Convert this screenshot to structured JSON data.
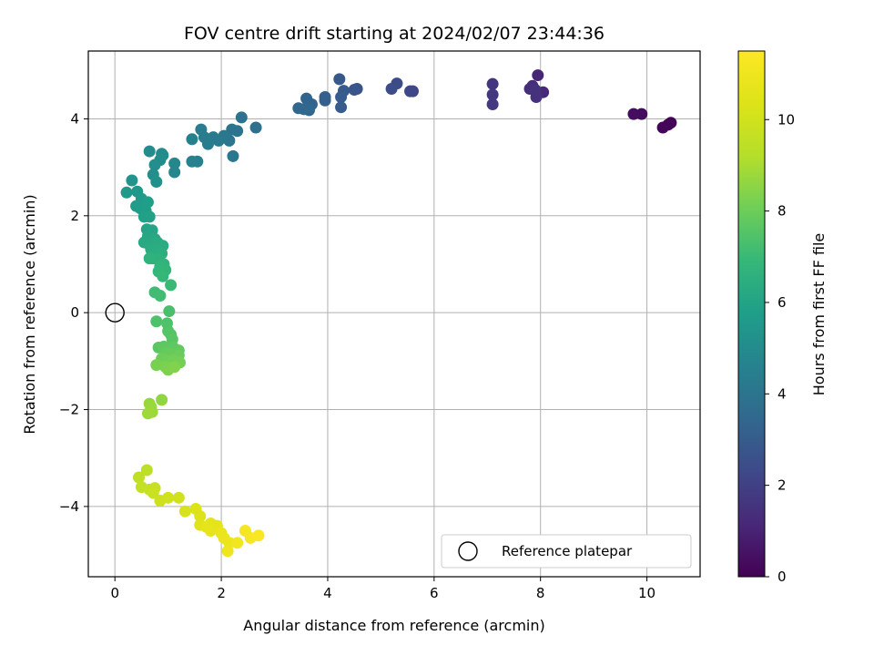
{
  "chart_data": {
    "type": "scatter",
    "title": "FOV centre drift starting at 2024/02/07 23:44:36",
    "xlabel": "Angular distance from reference (arcmin)",
    "ylabel": "Rotation from reference (arcmin)",
    "xlim": [
      -0.5,
      11.0
    ],
    "ylim": [
      -5.45,
      5.4
    ],
    "xticks": [
      0,
      2,
      4,
      6,
      8,
      10
    ],
    "yticks": [
      -4,
      -2,
      0,
      2,
      4
    ],
    "grid": true,
    "legend": {
      "label": "Reference platepar",
      "placement": "lower right",
      "marker": "hollow-circle"
    },
    "reference_point": {
      "x": 0,
      "y": 0
    },
    "colorbar": {
      "label": "Hours from first FF file",
      "colormap": "viridis",
      "range": [
        0,
        11.5
      ],
      "ticks": [
        0,
        2,
        4,
        6,
        8,
        10
      ]
    },
    "points": [
      {
        "x": 10.45,
        "y": 3.92,
        "c": 0.05
      },
      {
        "x": 10.4,
        "y": 3.88,
        "c": 0.1
      },
      {
        "x": 10.3,
        "y": 3.82,
        "c": 0.15
      },
      {
        "x": 9.9,
        "y": 4.1,
        "c": 0.3
      },
      {
        "x": 9.75,
        "y": 4.1,
        "c": 0.35
      },
      {
        "x": 7.95,
        "y": 4.9,
        "c": 1.1
      },
      {
        "x": 8.05,
        "y": 4.55,
        "c": 1.2
      },
      {
        "x": 7.85,
        "y": 4.68,
        "c": 1.3
      },
      {
        "x": 7.8,
        "y": 4.62,
        "c": 1.35
      },
      {
        "x": 7.92,
        "y": 4.45,
        "c": 1.45
      },
      {
        "x": 7.9,
        "y": 4.6,
        "c": 1.5
      },
      {
        "x": 7.1,
        "y": 4.72,
        "c": 1.6
      },
      {
        "x": 7.1,
        "y": 4.5,
        "c": 1.7
      },
      {
        "x": 7.1,
        "y": 4.3,
        "c": 1.75
      },
      {
        "x": 5.6,
        "y": 4.57,
        "c": 2.2
      },
      {
        "x": 5.55,
        "y": 4.57,
        "c": 2.25
      },
      {
        "x": 5.3,
        "y": 4.73,
        "c": 2.4
      },
      {
        "x": 5.2,
        "y": 4.62,
        "c": 2.45
      },
      {
        "x": 4.55,
        "y": 4.62,
        "c": 2.7
      },
      {
        "x": 4.5,
        "y": 4.6,
        "c": 2.75
      },
      {
        "x": 4.22,
        "y": 4.82,
        "c": 2.85
      },
      {
        "x": 4.3,
        "y": 4.58,
        "c": 2.9
      },
      {
        "x": 4.25,
        "y": 4.45,
        "c": 2.95
      },
      {
        "x": 4.25,
        "y": 4.24,
        "c": 3.0
      },
      {
        "x": 3.95,
        "y": 4.38,
        "c": 3.1
      },
      {
        "x": 3.95,
        "y": 4.45,
        "c": 3.15
      },
      {
        "x": 3.7,
        "y": 4.3,
        "c": 3.3
      },
      {
        "x": 3.6,
        "y": 4.42,
        "c": 3.35
      },
      {
        "x": 3.55,
        "y": 4.2,
        "c": 3.4
      },
      {
        "x": 3.45,
        "y": 4.22,
        "c": 3.45
      },
      {
        "x": 3.65,
        "y": 4.18,
        "c": 3.5
      },
      {
        "x": 2.65,
        "y": 3.82,
        "c": 3.8
      },
      {
        "x": 2.38,
        "y": 4.03,
        "c": 3.9
      },
      {
        "x": 2.3,
        "y": 3.75,
        "c": 3.95
      },
      {
        "x": 2.2,
        "y": 3.78,
        "c": 4.0
      },
      {
        "x": 2.15,
        "y": 3.55,
        "c": 4.05
      },
      {
        "x": 2.22,
        "y": 3.23,
        "c": 4.1
      },
      {
        "x": 2.05,
        "y": 3.65,
        "c": 4.15
      },
      {
        "x": 1.95,
        "y": 3.55,
        "c": 4.2
      },
      {
        "x": 1.85,
        "y": 3.62,
        "c": 4.25
      },
      {
        "x": 1.75,
        "y": 3.48,
        "c": 4.3
      },
      {
        "x": 1.68,
        "y": 3.62,
        "c": 4.35
      },
      {
        "x": 1.62,
        "y": 3.78,
        "c": 4.4
      },
      {
        "x": 1.45,
        "y": 3.58,
        "c": 4.5
      },
      {
        "x": 1.55,
        "y": 3.12,
        "c": 4.55
      },
      {
        "x": 1.45,
        "y": 3.12,
        "c": 4.6
      },
      {
        "x": 1.12,
        "y": 3.08,
        "c": 4.75
      },
      {
        "x": 1.12,
        "y": 2.9,
        "c": 4.8
      },
      {
        "x": 0.9,
        "y": 3.25,
        "c": 4.9
      },
      {
        "x": 0.88,
        "y": 3.28,
        "c": 4.95
      },
      {
        "x": 0.65,
        "y": 3.33,
        "c": 5.0
      },
      {
        "x": 0.85,
        "y": 3.15,
        "c": 5.05
      },
      {
        "x": 0.75,
        "y": 3.05,
        "c": 5.1
      },
      {
        "x": 0.72,
        "y": 2.85,
        "c": 5.15
      },
      {
        "x": 0.78,
        "y": 2.7,
        "c": 5.2
      },
      {
        "x": 0.32,
        "y": 2.73,
        "c": 5.4
      },
      {
        "x": 0.42,
        "y": 2.5,
        "c": 5.5
      },
      {
        "x": 0.22,
        "y": 2.48,
        "c": 5.55
      },
      {
        "x": 0.5,
        "y": 2.35,
        "c": 5.6
      },
      {
        "x": 0.4,
        "y": 2.2,
        "c": 5.65
      },
      {
        "x": 0.48,
        "y": 2.15,
        "c": 5.7
      },
      {
        "x": 0.58,
        "y": 2.1,
        "c": 5.75
      },
      {
        "x": 0.62,
        "y": 2.28,
        "c": 5.8
      },
      {
        "x": 0.55,
        "y": 1.98,
        "c": 5.85
      },
      {
        "x": 0.65,
        "y": 1.98,
        "c": 5.9
      },
      {
        "x": 0.6,
        "y": 1.72,
        "c": 6.0
      },
      {
        "x": 0.7,
        "y": 1.7,
        "c": 6.05
      },
      {
        "x": 0.62,
        "y": 1.58,
        "c": 6.1
      },
      {
        "x": 0.75,
        "y": 1.52,
        "c": 6.15
      },
      {
        "x": 0.55,
        "y": 1.45,
        "c": 6.2
      },
      {
        "x": 0.65,
        "y": 1.4,
        "c": 6.25
      },
      {
        "x": 0.8,
        "y": 1.45,
        "c": 6.3
      },
      {
        "x": 0.9,
        "y": 1.38,
        "c": 6.35
      },
      {
        "x": 0.68,
        "y": 1.3,
        "c": 6.4
      },
      {
        "x": 0.78,
        "y": 1.28,
        "c": 6.45
      },
      {
        "x": 0.88,
        "y": 1.22,
        "c": 6.5
      },
      {
        "x": 0.7,
        "y": 1.12,
        "c": 6.55
      },
      {
        "x": 0.8,
        "y": 1.1,
        "c": 6.6
      },
      {
        "x": 0.65,
        "y": 1.12,
        "c": 6.65
      },
      {
        "x": 0.92,
        "y": 1.0,
        "c": 6.7
      },
      {
        "x": 0.85,
        "y": 0.95,
        "c": 6.75
      },
      {
        "x": 0.95,
        "y": 0.88,
        "c": 6.8
      },
      {
        "x": 0.82,
        "y": 0.85,
        "c": 6.85
      },
      {
        "x": 0.9,
        "y": 0.75,
        "c": 6.9
      },
      {
        "x": 1.05,
        "y": 0.57,
        "c": 7.0
      },
      {
        "x": 0.75,
        "y": 0.42,
        "c": 7.1
      },
      {
        "x": 0.85,
        "y": 0.35,
        "c": 7.15
      },
      {
        "x": 1.02,
        "y": 0.03,
        "c": 7.3
      },
      {
        "x": 0.78,
        "y": -0.18,
        "c": 7.4
      },
      {
        "x": 0.98,
        "y": -0.22,
        "c": 7.45
      },
      {
        "x": 1.0,
        "y": -0.38,
        "c": 7.5
      },
      {
        "x": 1.05,
        "y": -0.45,
        "c": 7.55
      },
      {
        "x": 1.08,
        "y": -0.55,
        "c": 7.6
      },
      {
        "x": 0.82,
        "y": -0.72,
        "c": 7.65
      },
      {
        "x": 0.92,
        "y": -0.7,
        "c": 7.7
      },
      {
        "x": 1.1,
        "y": -0.72,
        "c": 7.75
      },
      {
        "x": 1.2,
        "y": -0.78,
        "c": 7.8
      },
      {
        "x": 0.95,
        "y": -0.82,
        "c": 7.85
      },
      {
        "x": 1.05,
        "y": -0.85,
        "c": 7.9
      },
      {
        "x": 1.2,
        "y": -0.88,
        "c": 7.95
      },
      {
        "x": 0.88,
        "y": -0.95,
        "c": 8.0
      },
      {
        "x": 0.98,
        "y": -1.0,
        "c": 8.05
      },
      {
        "x": 1.1,
        "y": -0.98,
        "c": 8.1
      },
      {
        "x": 1.22,
        "y": -1.03,
        "c": 8.15
      },
      {
        "x": 0.78,
        "y": -1.08,
        "c": 8.2
      },
      {
        "x": 0.95,
        "y": -1.12,
        "c": 8.25
      },
      {
        "x": 1.0,
        "y": -1.18,
        "c": 8.3
      },
      {
        "x": 1.12,
        "y": -1.12,
        "c": 8.35
      },
      {
        "x": 0.88,
        "y": -1.8,
        "c": 8.6
      },
      {
        "x": 0.65,
        "y": -1.88,
        "c": 8.7
      },
      {
        "x": 0.68,
        "y": -1.95,
        "c": 8.75
      },
      {
        "x": 0.7,
        "y": -2.05,
        "c": 8.8
      },
      {
        "x": 0.62,
        "y": -2.08,
        "c": 8.85
      },
      {
        "x": 0.6,
        "y": -3.25,
        "c": 9.4
      },
      {
        "x": 0.45,
        "y": -3.4,
        "c": 9.5
      },
      {
        "x": 0.5,
        "y": -3.6,
        "c": 9.6
      },
      {
        "x": 0.65,
        "y": -3.65,
        "c": 9.7
      },
      {
        "x": 0.75,
        "y": -3.62,
        "c": 9.75
      },
      {
        "x": 0.72,
        "y": -3.72,
        "c": 9.8
      },
      {
        "x": 0.85,
        "y": -3.88,
        "c": 9.9
      },
      {
        "x": 1.0,
        "y": -3.82,
        "c": 9.95
      },
      {
        "x": 1.2,
        "y": -3.82,
        "c": 10.0
      },
      {
        "x": 1.32,
        "y": -4.1,
        "c": 10.2
      },
      {
        "x": 1.52,
        "y": -4.05,
        "c": 10.3
      },
      {
        "x": 1.6,
        "y": -4.2,
        "c": 10.35
      },
      {
        "x": 1.6,
        "y": -4.38,
        "c": 10.45
      },
      {
        "x": 1.72,
        "y": -4.42,
        "c": 10.55
      },
      {
        "x": 1.8,
        "y": -4.35,
        "c": 10.6
      },
      {
        "x": 1.92,
        "y": -4.4,
        "c": 10.65
      },
      {
        "x": 1.8,
        "y": -4.5,
        "c": 10.7
      },
      {
        "x": 2.0,
        "y": -4.55,
        "c": 10.8
      },
      {
        "x": 2.05,
        "y": -4.65,
        "c": 10.85
      },
      {
        "x": 2.15,
        "y": -4.75,
        "c": 10.9
      },
      {
        "x": 2.12,
        "y": -4.92,
        "c": 11.0
      },
      {
        "x": 2.3,
        "y": -4.75,
        "c": 11.1
      },
      {
        "x": 2.45,
        "y": -4.5,
        "c": 11.2
      },
      {
        "x": 2.55,
        "y": -4.65,
        "c": 11.3
      },
      {
        "x": 2.7,
        "y": -4.6,
        "c": 11.4
      }
    ]
  }
}
